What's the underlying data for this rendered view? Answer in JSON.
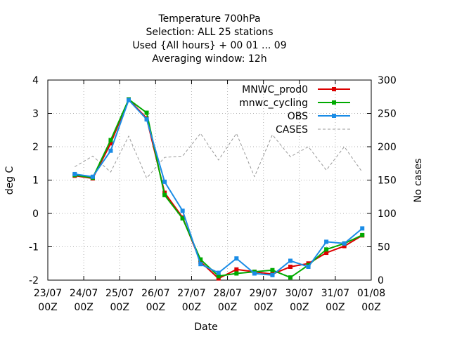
{
  "chart_data": {
    "type": "line",
    "title_lines": [
      "Temperature 700hPa",
      "Selection: ALL      25 stations",
      "Used {All hours} + 00 01 ... 09",
      "Averaging window: 12h"
    ],
    "xlabel": "Date",
    "ylabel": "deg C",
    "y2label": "No cases",
    "x_ticks": [
      {
        "date": "23/07",
        "hour": "00Z"
      },
      {
        "date": "24/07",
        "hour": "00Z"
      },
      {
        "date": "25/07",
        "hour": "00Z"
      },
      {
        "date": "26/07",
        "hour": "00Z"
      },
      {
        "date": "27/07",
        "hour": "00Z"
      },
      {
        "date": "28/07",
        "hour": "00Z"
      },
      {
        "date": "29/07",
        "hour": "00Z"
      },
      {
        "date": "30/07",
        "hour": "00Z"
      },
      {
        "date": "31/07",
        "hour": "00Z"
      },
      {
        "date": "01/08",
        "hour": "00Z"
      }
    ],
    "xlim": [
      0,
      9
    ],
    "ylim": [
      -2,
      4
    ],
    "y_ticks": [
      "-2",
      "-1",
      "0",
      "1",
      "2",
      "3",
      "4"
    ],
    "y2lim": [
      0,
      300
    ],
    "y2_ticks": [
      "0",
      "50",
      "100",
      "150",
      "200",
      "250",
      "300"
    ],
    "grid": true,
    "legend_position": "top-right",
    "series": [
      {
        "name": "MNWC_prod0",
        "axis": "y",
        "color": "#dd0000",
        "marker": true,
        "x": [
          0.75,
          1.25,
          1.75,
          2.25,
          2.75,
          3.25,
          3.75,
          4.25,
          4.75,
          5.25,
          5.75,
          6.25,
          6.75,
          7.25,
          7.75,
          8.25,
          8.75
        ],
        "values": [
          1.13,
          1.05,
          2.1,
          3.42,
          2.85,
          0.62,
          -0.12,
          -1.45,
          -1.95,
          -1.68,
          -1.75,
          -1.82,
          -1.6,
          -1.5,
          -1.18,
          -0.98,
          -0.66
        ]
      },
      {
        "name": "mnwc_cycling",
        "axis": "y",
        "color": "#00aa00",
        "marker": true,
        "x": [
          0.75,
          1.25,
          1.75,
          2.25,
          2.75,
          3.25,
          3.75,
          4.25,
          4.75,
          5.25,
          5.75,
          6.25,
          6.75,
          7.25,
          7.75,
          8.25,
          8.75
        ],
        "values": [
          1.15,
          1.07,
          2.2,
          3.42,
          3.02,
          0.55,
          -0.15,
          -1.38,
          -1.88,
          -1.8,
          -1.75,
          -1.7,
          -1.92,
          -1.55,
          -1.08,
          -0.9,
          -0.65
        ]
      },
      {
        "name": "OBS",
        "axis": "y",
        "color": "#1a8ce6",
        "marker": true,
        "x": [
          0.75,
          1.25,
          1.75,
          2.25,
          2.75,
          3.25,
          3.75,
          4.25,
          4.75,
          5.25,
          5.75,
          6.25,
          6.75,
          7.25,
          7.75,
          8.25,
          8.75
        ],
        "values": [
          1.18,
          1.1,
          1.88,
          3.4,
          2.82,
          0.95,
          0.08,
          -1.52,
          -1.78,
          -1.35,
          -1.8,
          -1.85,
          -1.42,
          -1.6,
          -0.85,
          -0.9,
          -0.45
        ]
      },
      {
        "name": "CASES",
        "axis": "y2",
        "color": "#999999",
        "marker": false,
        "dashed": true,
        "x": [
          0.75,
          1.25,
          1.75,
          2.25,
          2.75,
          3.25,
          3.75,
          4.25,
          4.75,
          5.25,
          5.75,
          6.25,
          6.75,
          7.25,
          7.75,
          8.25,
          8.75
        ],
        "values": [
          170,
          186,
          162,
          216,
          153,
          184,
          186,
          220,
          180,
          220,
          155,
          218,
          185,
          200,
          165,
          200,
          162
        ]
      }
    ]
  }
}
